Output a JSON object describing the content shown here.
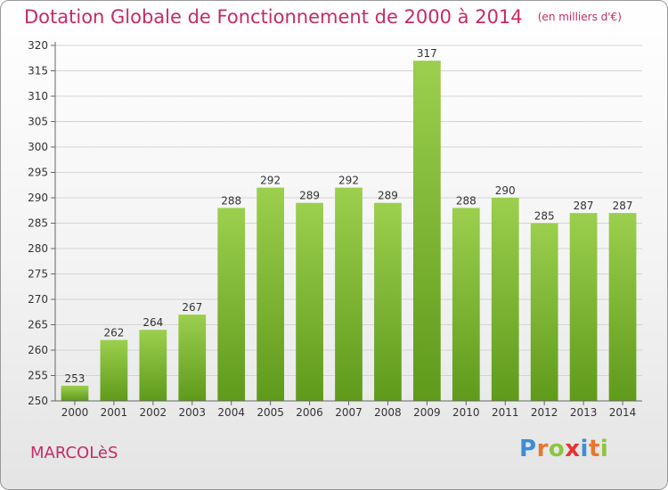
{
  "title": "Dotation Globale de Fonctionnement de 2000 à 2014",
  "unit": "(en milliers d'€)",
  "commune": "MARCOLèS",
  "logo": {
    "letters": [
      "P",
      "r",
      "o",
      "x",
      "i",
      "t",
      "i"
    ],
    "colors": [
      "#3c8fd6",
      "#e8772e",
      "#8cc63f",
      "#e8332e",
      "#3c8fd6",
      "#e8772e",
      "#8cc63f"
    ]
  },
  "colors": {
    "bar_top": "#9ccf4e",
    "bar_bottom": "#5f9a1a",
    "title": "#c62a6b"
  },
  "chart_data": {
    "type": "bar",
    "categories": [
      "2000",
      "2001",
      "2002",
      "2003",
      "2004",
      "2005",
      "2006",
      "2007",
      "2008",
      "2009",
      "2010",
      "2011",
      "2012",
      "2013",
      "2014"
    ],
    "values": [
      253,
      262,
      264,
      267,
      288,
      292,
      289,
      292,
      289,
      317,
      288,
      290,
      285,
      287,
      287
    ],
    "ylim": [
      250,
      320
    ],
    "yticks": [
      250,
      255,
      260,
      265,
      270,
      275,
      280,
      285,
      290,
      295,
      300,
      305,
      310,
      315,
      320
    ],
    "grid": true
  }
}
